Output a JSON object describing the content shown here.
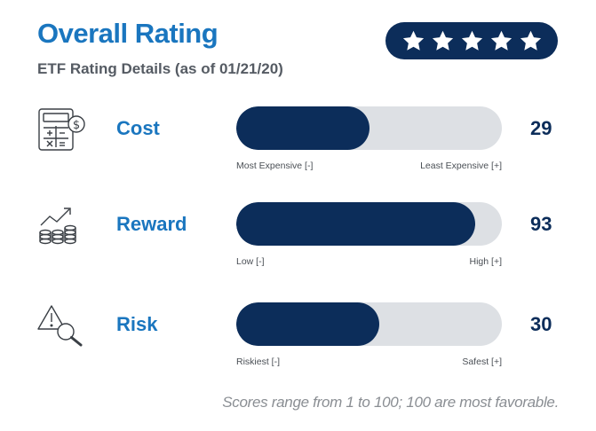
{
  "header": {
    "title": "Overall Rating",
    "subtitle": "ETF Rating Details (as of 01/21/20)",
    "stars": 5
  },
  "rows": [
    {
      "icon": "calculator-icon",
      "label": "Cost",
      "score": "29",
      "fraction": 0.5,
      "min_label": "Most Expensive [-]",
      "max_label": "Least Expensive [+]"
    },
    {
      "icon": "growth-chart-icon",
      "label": "Reward",
      "score": "93",
      "fraction": 0.9,
      "min_label": "Low [-]",
      "max_label": "High [+]"
    },
    {
      "icon": "warning-magnifier-icon",
      "label": "Risk",
      "score": "30",
      "fraction": 0.54,
      "min_label": "Riskiest [-]",
      "max_label": "Safest [+]"
    }
  ],
  "footnote": "Scores range from 1 to 100; 100 are most favorable.",
  "colors": {
    "accent": "#1a76bf",
    "navy": "#0c2d5a",
    "track": "#dde0e4"
  }
}
